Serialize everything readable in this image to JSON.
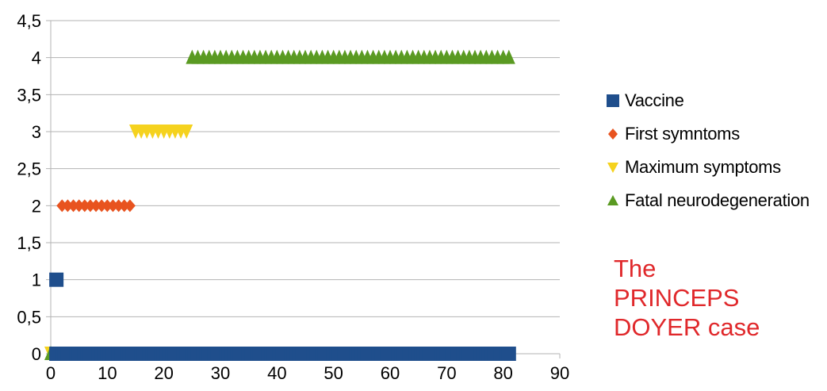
{
  "chart_data": {
    "type": "scatter",
    "title": "",
    "xlabel": "",
    "ylabel": "",
    "xlim": [
      0,
      90
    ],
    "ylim": [
      0,
      4.5
    ],
    "x_ticks": [
      "0",
      "10",
      "20",
      "30",
      "40",
      "50",
      "60",
      "70",
      "80",
      "90"
    ],
    "y_ticks": [
      "0",
      "0,5",
      "1",
      "1,5",
      "2",
      "2,5",
      "3",
      "3,5",
      "4",
      "4,5"
    ],
    "grid": "horizontal",
    "legend_position": "right",
    "series": [
      {
        "name": "Vaccine",
        "marker": "square",
        "color": "#1f4e8c",
        "points": [
          {
            "x": 1,
            "y": 1
          },
          {
            "x": 1,
            "y": 0
          },
          {
            "x": 81,
            "y": 0
          }
        ],
        "zero_range": [
          1,
          81
        ]
      },
      {
        "name": "First symntoms",
        "marker": "diamond",
        "color": "#e8531f",
        "points_range": {
          "from": 2,
          "to": 14,
          "y": 2
        },
        "zero_point": {
          "x": 0.5,
          "y": 0
        }
      },
      {
        "name": "Maximum symptoms",
        "marker": "triangle-down",
        "color": "#f5d21e",
        "points_range": {
          "from": 15,
          "to": 24,
          "y": 3
        },
        "zero_point": {
          "x": 0,
          "y": 0
        }
      },
      {
        "name": "Fatal neurodegeneration",
        "marker": "triangle-up",
        "color": "#5a9a22",
        "points_range": {
          "from": 25,
          "to": 81,
          "y": 4
        },
        "zero_point": {
          "x": 0,
          "y": 0
        }
      }
    ]
  },
  "annotation": {
    "lines": [
      "The",
      "PRINCEPS",
      "DOYER case"
    ]
  }
}
